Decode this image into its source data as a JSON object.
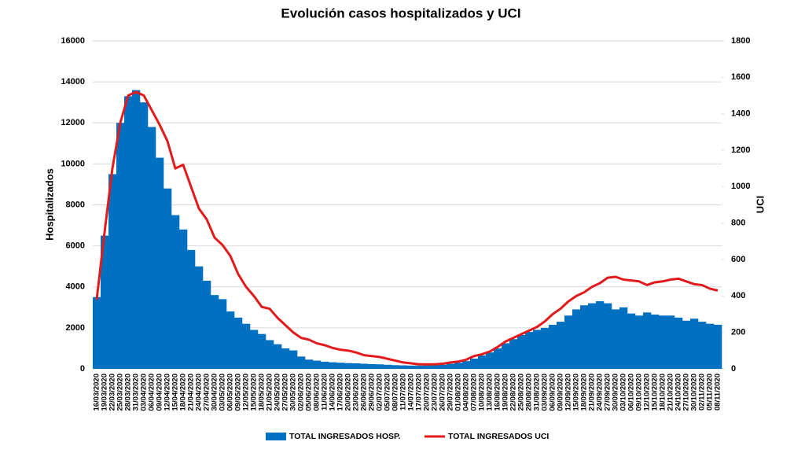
{
  "chart_data": {
    "type": "bar",
    "title": "Evolución casos hospitalizados y UCI",
    "y_label": "Hospitalizados",
    "y2_label": "UCI",
    "grid": true,
    "legend": "bottom",
    "categories": [
      "16/03/2020",
      "19/03/2020",
      "22/03/2020",
      "25/03/2020",
      "28/03/2020",
      "31/03/2020",
      "03/04/2020",
      "06/04/2020",
      "09/04/2020",
      "12/04/2020",
      "15/04/2020",
      "18/04/2020",
      "21/04/2020",
      "24/04/2020",
      "27/04/2020",
      "30/04/2020",
      "03/05/2020",
      "06/05/2020",
      "09/05/2020",
      "12/05/2020",
      "15/05/2020",
      "18/05/2020",
      "21/05/2020",
      "24/05/2020",
      "27/05/2020",
      "30/05/2020",
      "02/06/2020",
      "05/06/2020",
      "08/06/2020",
      "11/06/2020",
      "14/06/2020",
      "17/06/2020",
      "20/06/2020",
      "23/06/2020",
      "26/06/2020",
      "29/06/2020",
      "02/07/2020",
      "05/07/2020",
      "08/07/2020",
      "11/07/2020",
      "14/07/2020",
      "17/07/2020",
      "20/07/2020",
      "23/07/2020",
      "26/07/2020",
      "29/07/2020",
      "01/08/2020",
      "04/08/2020",
      "07/08/2020",
      "10/08/2020",
      "13/08/2020",
      "16/08/2020",
      "19/08/2020",
      "22/08/2020",
      "25/08/2020",
      "28/08/2020",
      "31/08/2020",
      "03/09/2020",
      "06/09/2020",
      "09/09/2020",
      "12/09/2020",
      "15/09/2020",
      "18/09/2020",
      "21/09/2020",
      "24/09/2020",
      "27/09/2020",
      "30/09/2020",
      "03/10/2020",
      "06/10/2020",
      "09/10/2020",
      "12/10/2020",
      "15/10/2020",
      "18/10/2020",
      "21/10/2020",
      "24/10/2020",
      "27/10/2020",
      "30/10/2020",
      "02/11/2020",
      "05/11/2020",
      "08/11/2020"
    ],
    "series": [
      {
        "name": "TOTAL INGRESADOS HOSP.",
        "type": "bar",
        "color": "#0070c0",
        "values": [
          3500,
          6500,
          9500,
          12000,
          13300,
          13600,
          13000,
          11800,
          10300,
          8800,
          7500,
          6800,
          5800,
          5000,
          4300,
          3600,
          3400,
          2800,
          2500,
          2200,
          1900,
          1700,
          1400,
          1200,
          1000,
          900,
          600,
          450,
          400,
          350,
          320,
          300,
          280,
          270,
          250,
          230,
          220,
          200,
          180,
          170,
          160,
          160,
          170,
          180,
          200,
          250,
          300,
          380,
          500,
          650,
          800,
          1000,
          1250,
          1450,
          1650,
          1800,
          1900,
          2000,
          2150,
          2300,
          2600,
          2900,
          3100,
          3200,
          3300,
          3200,
          2900,
          3000,
          2700,
          2600,
          2750,
          2650,
          2600,
          2600,
          2500,
          2350,
          2450,
          2300,
          2200,
          2150
        ]
      },
      {
        "name": "TOTAL INGRESADOS UCI",
        "type": "line",
        "axis": "y2",
        "color": "#e31a1c",
        "values": [
          380,
          750,
          1100,
          1350,
          1500,
          1520,
          1500,
          1420,
          1340,
          1250,
          1100,
          1120,
          1000,
          880,
          820,
          720,
          680,
          620,
          520,
          450,
          400,
          340,
          330,
          280,
          240,
          200,
          170,
          160,
          140,
          130,
          115,
          105,
          100,
          90,
          75,
          70,
          65,
          55,
          45,
          35,
          30,
          25,
          25,
          25,
          28,
          35,
          40,
          50,
          70,
          80,
          95,
          120,
          150,
          170,
          190,
          210,
          230,
          260,
          300,
          330,
          370,
          400,
          420,
          450,
          470,
          500,
          505,
          490,
          485,
          480,
          460,
          475,
          480,
          490,
          495,
          480,
          465,
          460,
          440,
          430
        ]
      }
    ],
    "ylim": [
      0,
      16000
    ],
    "yticks": [
      0,
      2000,
      4000,
      6000,
      8000,
      10000,
      12000,
      14000,
      16000
    ],
    "y2lim": [
      0,
      1800
    ],
    "y2ticks": [
      0,
      200,
      400,
      600,
      800,
      1000,
      1200,
      1400,
      1600,
      1800
    ]
  }
}
